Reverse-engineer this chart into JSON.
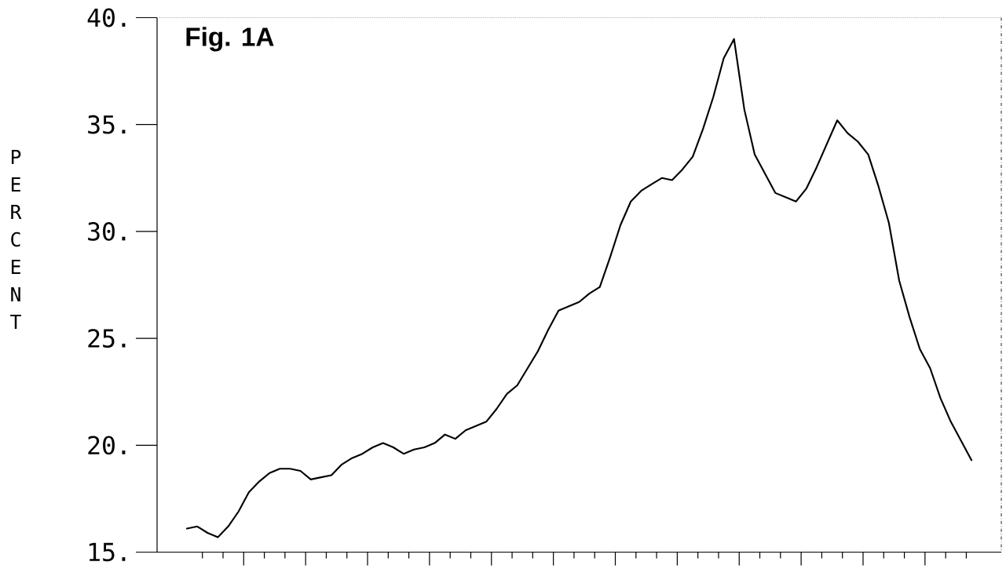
{
  "chart_data": {
    "type": "line",
    "title": "Fig. 1A",
    "ylabel": "PERCENT",
    "categories": [
      null,
      null,
      null,
      null,
      null,
      null,
      null,
      null,
      null,
      null,
      null,
      null,
      null,
      null,
      null,
      null,
      null,
      null,
      null,
      null,
      null,
      null,
      null,
      null,
      null,
      null,
      null,
      null,
      null,
      null,
      null,
      null,
      null,
      null,
      null,
      null,
      null,
      null,
      null,
      null,
      null,
      null,
      null,
      null,
      null,
      null,
      null,
      null,
      null,
      null,
      null,
      null,
      null,
      null,
      null,
      null,
      null,
      null,
      null,
      null,
      null,
      null,
      null,
      null,
      null,
      null,
      null,
      null,
      null,
      null,
      null,
      null,
      null,
      null,
      null,
      null,
      null
    ],
    "series": [
      {
        "color": "#000000",
        "values": [
          16.1,
          16.2,
          15.9,
          15.7,
          16.2,
          16.9,
          17.8,
          18.3,
          18.7,
          18.9,
          18.9,
          18.8,
          18.4,
          18.5,
          18.6,
          19.1,
          19.4,
          19.6,
          19.9,
          20.1,
          19.9,
          19.6,
          19.8,
          19.9,
          20.1,
          20.5,
          20.3,
          20.7,
          20.9,
          21.1,
          21.7,
          22.4,
          22.8,
          23.6,
          24.4,
          25.4,
          26.3,
          26.5,
          26.7,
          27.1,
          27.4,
          28.8,
          30.3,
          31.4,
          31.9,
          32.2,
          32.5,
          32.4,
          32.9,
          33.5,
          34.8,
          36.3,
          38.1,
          39.0,
          35.7,
          33.6,
          32.7,
          31.8,
          31.6,
          31.4,
          32.0,
          33.0,
          34.1,
          35.2,
          34.6,
          34.2,
          33.6,
          32.1,
          30.4,
          27.7,
          26.0,
          24.5,
          23.6,
          22.2,
          21.1,
          20.2,
          19.3
        ]
      }
    ],
    "ylim": [
      15,
      40
    ],
    "yticks": [
      {
        "value": 15,
        "label": "15."
      },
      {
        "value": 20,
        "label": "20."
      },
      {
        "value": 25,
        "label": "25."
      },
      {
        "value": 30,
        "label": "30."
      },
      {
        "value": 35,
        "label": "35."
      },
      {
        "value": 40,
        "label": "40."
      }
    ],
    "tick_labels": "y",
    "line_style": "solid"
  }
}
